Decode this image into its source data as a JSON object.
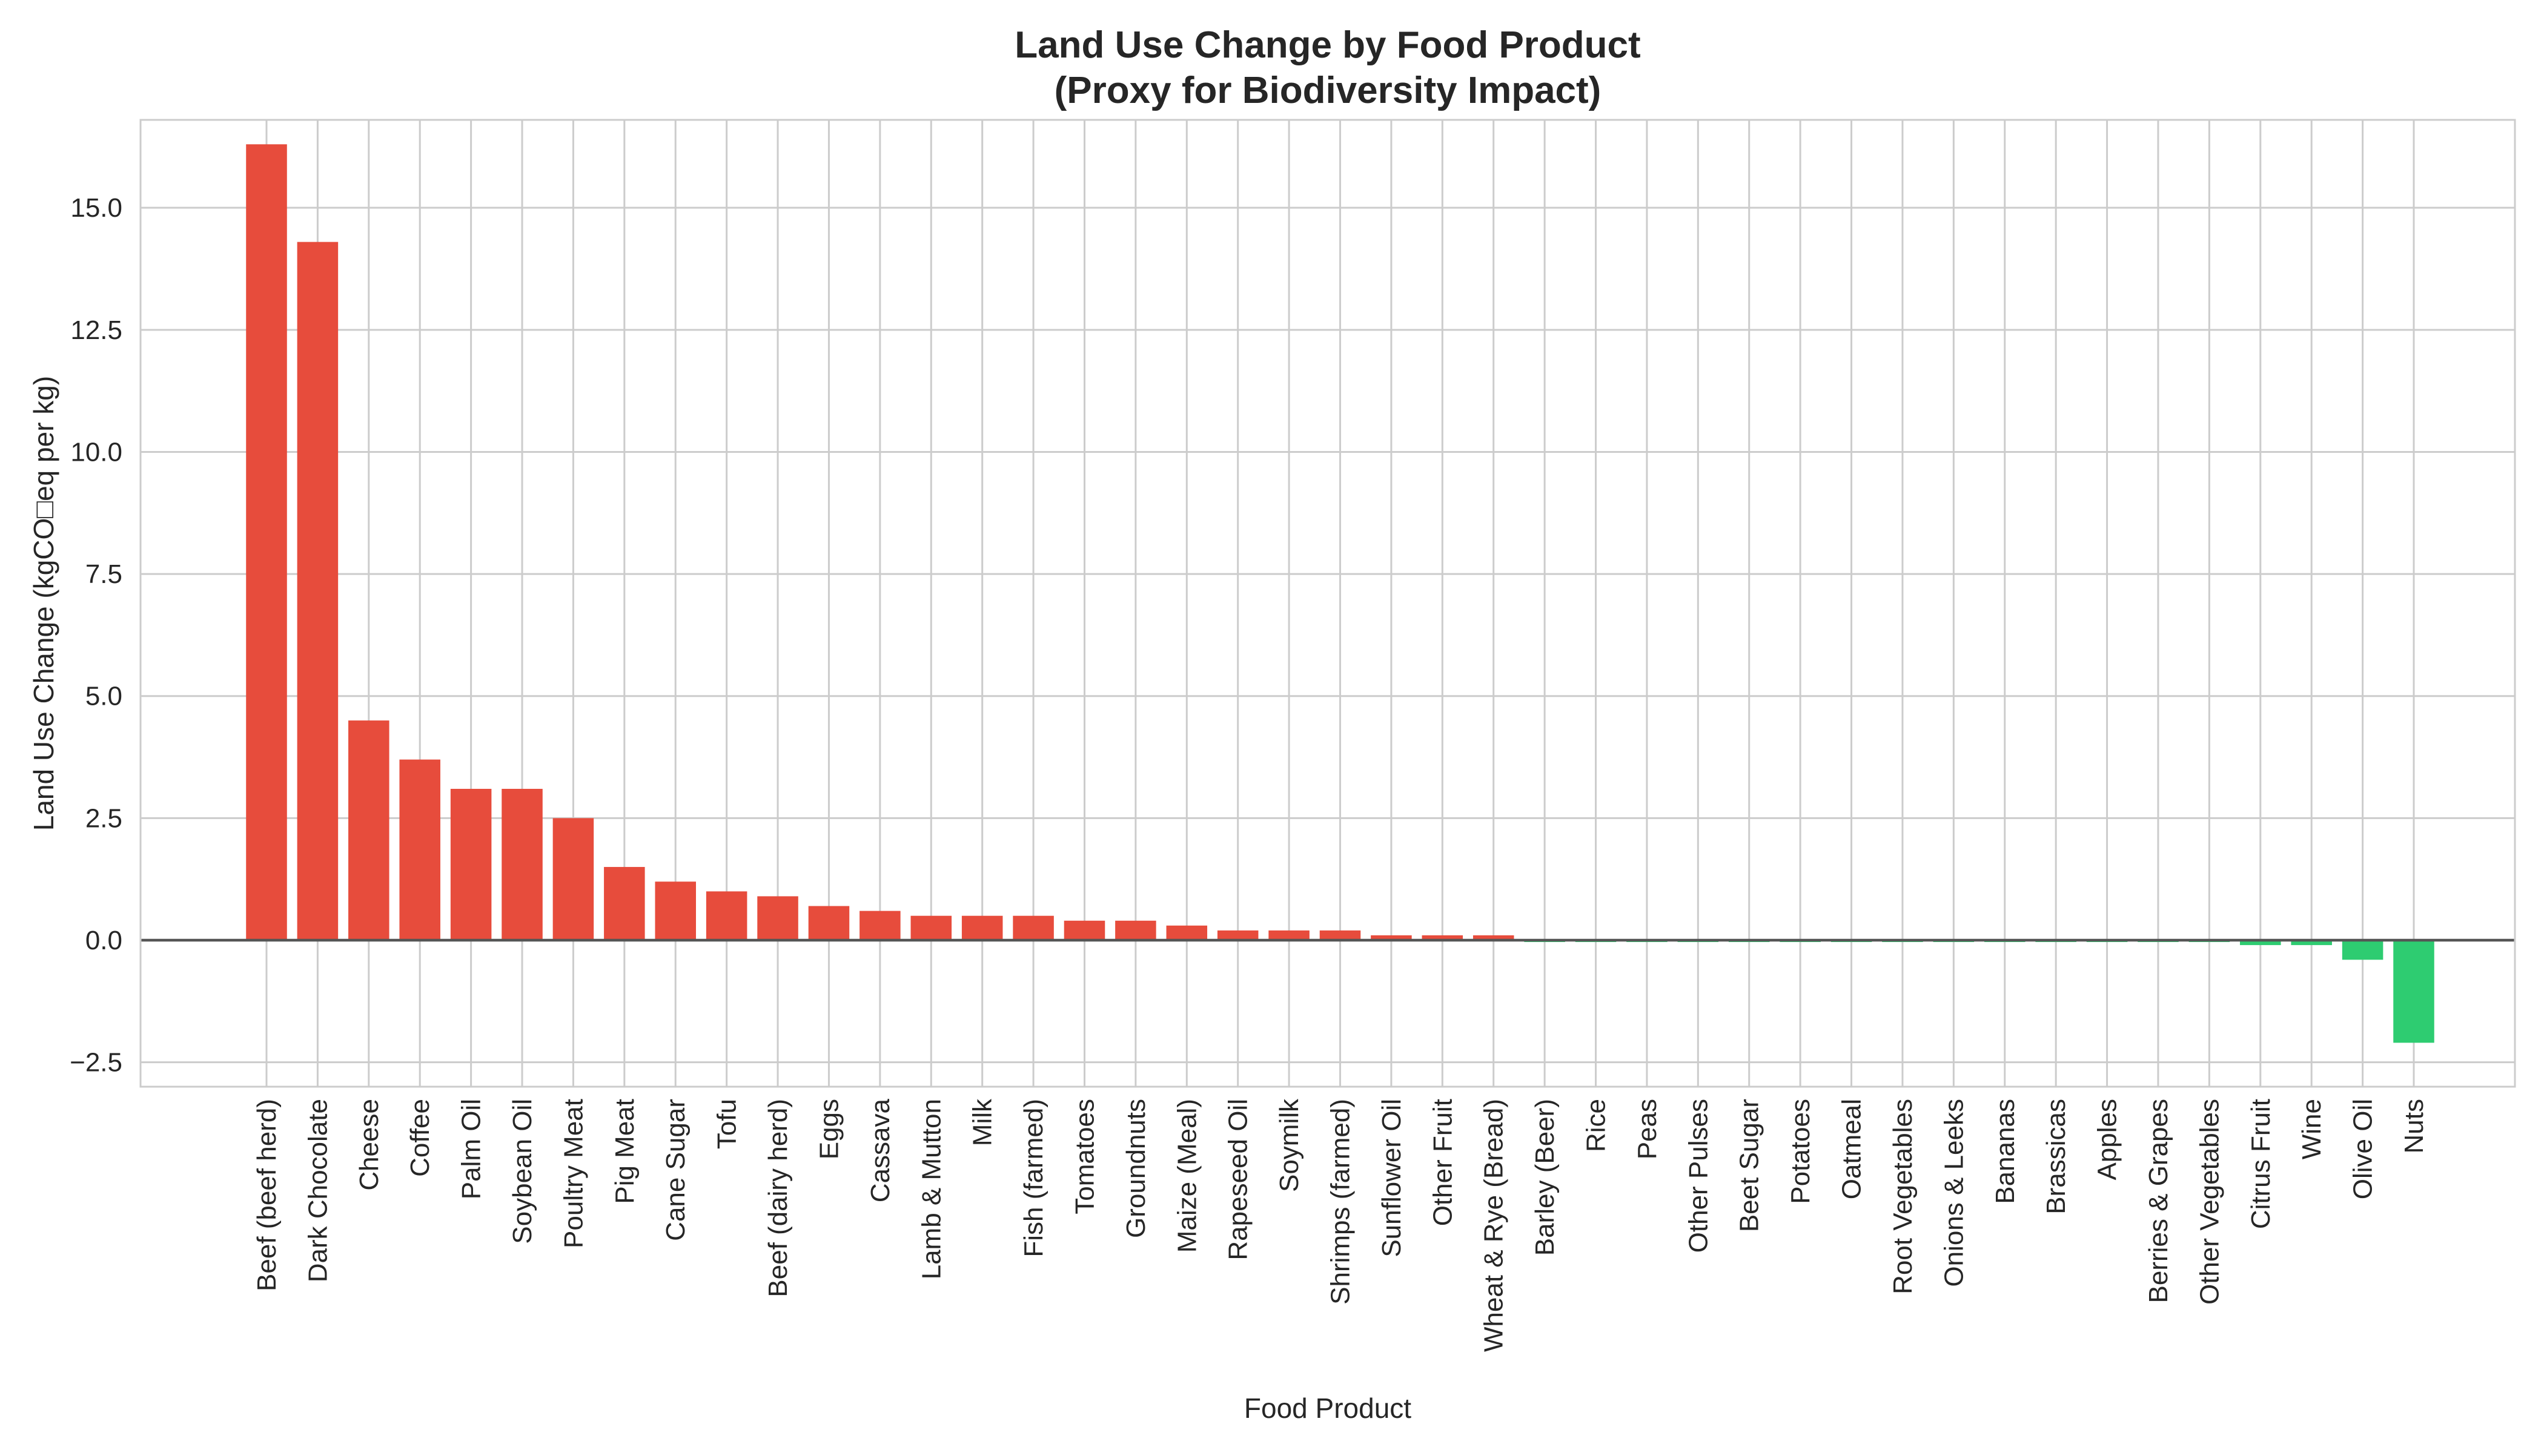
{
  "chart_data": {
    "type": "bar",
    "title": "Land Use Change by Food Product",
    "subtitle": "(Proxy for Biodiversity Impact)",
    "xlabel": "Food Product",
    "ylabel": "Land Use Change (kgCO□eq per kg)",
    "ylim": [
      -3.0,
      16.8
    ],
    "yticks": [
      -2.5,
      0.0,
      2.5,
      5.0,
      7.5,
      10.0,
      12.5,
      15.0
    ],
    "ytick_labels": [
      "−2.5",
      "0.0",
      "2.5",
      "5.0",
      "7.5",
      "10.0",
      "12.5",
      "15.0"
    ],
    "grid": true,
    "positive_color": "#e74c3c",
    "negative_color": "#2ecc71",
    "zero_line_color": "#555555",
    "categories": [
      "Beef (beef herd)",
      "Dark Chocolate",
      "Cheese",
      "Coffee",
      "Palm Oil",
      "Soybean Oil",
      "Poultry Meat",
      "Pig Meat",
      "Cane Sugar",
      "Tofu",
      "Beef (dairy herd)",
      "Eggs",
      "Cassava",
      "Lamb & Mutton",
      "Milk",
      "Fish (farmed)",
      "Tomatoes",
      "Groundnuts",
      "Maize (Meal)",
      "Rapeseed Oil",
      "Soymilk",
      "Shrimps (farmed)",
      "Sunflower Oil",
      "Other Fruit",
      "Wheat & Rye (Bread)",
      "Barley (Beer)",
      "Rice",
      "Peas",
      "Other Pulses",
      "Beet Sugar",
      "Potatoes",
      "Oatmeal",
      "Root Vegetables",
      "Onions & Leeks",
      "Bananas",
      "Brassicas",
      "Apples",
      "Berries & Grapes",
      "Other Vegetables",
      "Citrus Fruit",
      "Wine",
      "Olive Oil",
      "Nuts"
    ],
    "values": [
      16.3,
      14.3,
      4.5,
      3.7,
      3.1,
      3.1,
      2.5,
      1.5,
      1.2,
      1.0,
      0.9,
      0.7,
      0.6,
      0.5,
      0.5,
      0.5,
      0.4,
      0.4,
      0.3,
      0.2,
      0.2,
      0.2,
      0.1,
      0.1,
      0.1,
      0.0,
      0.0,
      0.0,
      0.0,
      0.0,
      0.0,
      0.0,
      0.0,
      0.0,
      0.0,
      0.0,
      0.0,
      0.0,
      0.0,
      -0.1,
      -0.1,
      -0.4,
      -2.1
    ]
  }
}
